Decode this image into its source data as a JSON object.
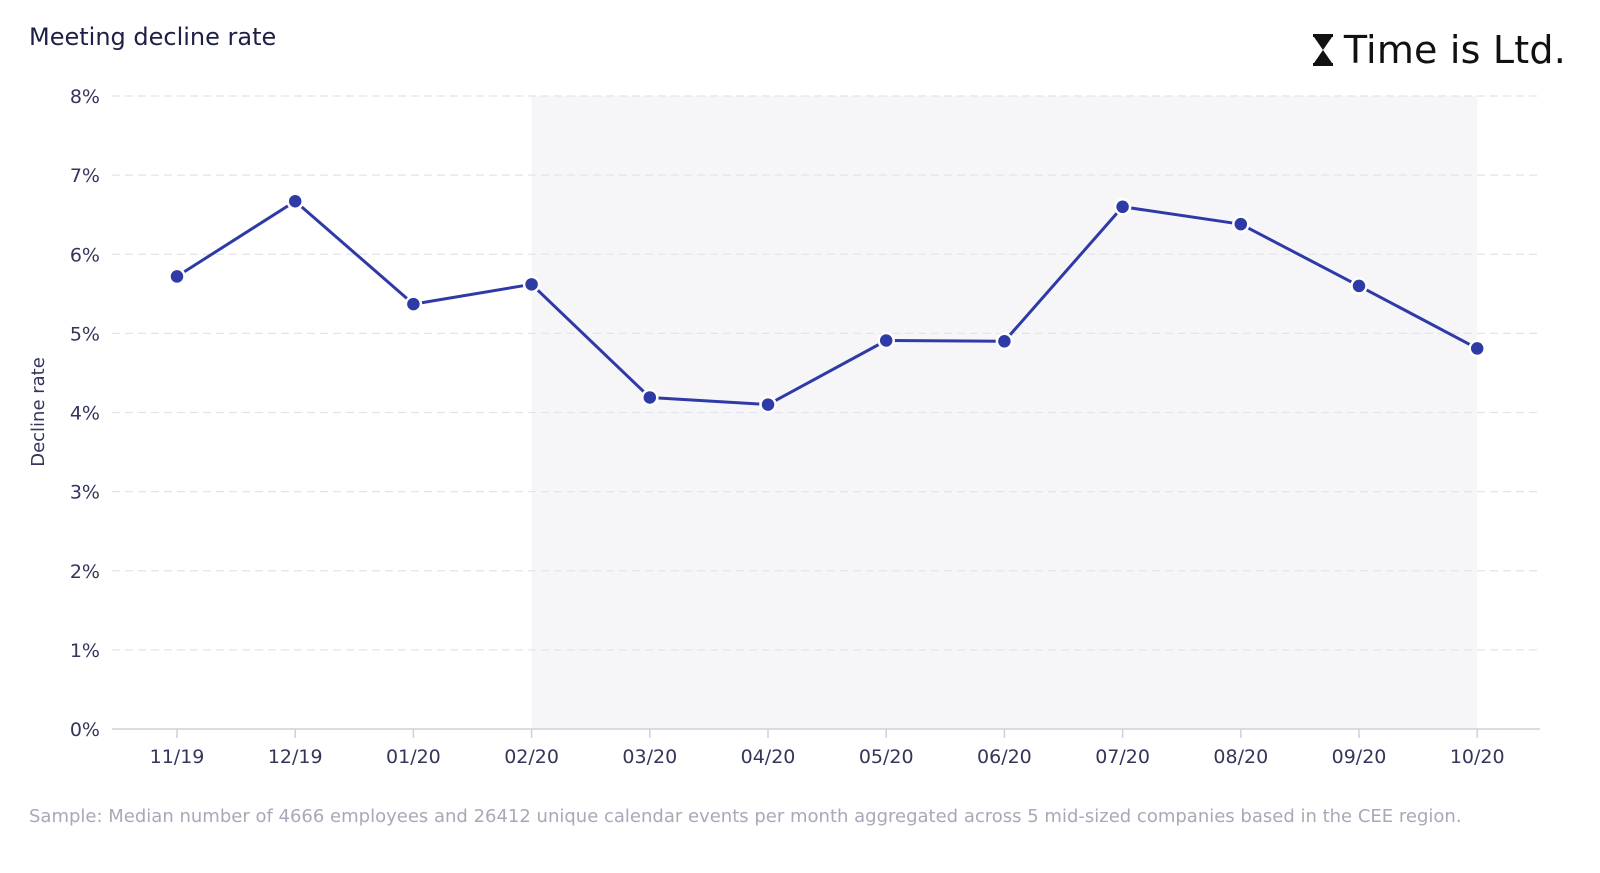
{
  "header": {
    "title": "Meeting decline rate",
    "brand": "Time is Ltd.",
    "brand_icon": "hourglass-icon"
  },
  "footnote": "Sample: Median number of 4666 employees and 26412 unique calendar events per month aggregated across 5 mid-sized companies based in the CEE region.",
  "colors": {
    "line": "#2e3aa6",
    "highlight_band": "#f6f6f9",
    "grid": "#e3e4ea",
    "axis": "#cfd0d8",
    "text": "#33365a",
    "footnote": "#a7a9b7"
  },
  "chart_data": {
    "type": "line",
    "title": "Meeting decline rate",
    "xlabel": "",
    "ylabel": "Decline rate",
    "categories": [
      "11/19",
      "12/19",
      "01/20",
      "02/20",
      "03/20",
      "04/20",
      "05/20",
      "06/20",
      "07/20",
      "08/20",
      "09/20",
      "10/20"
    ],
    "series": [
      {
        "values": [
          5.72,
          6.67,
          5.37,
          5.62,
          4.19,
          4.1,
          4.91,
          4.9,
          6.6,
          6.38,
          5.6,
          4.81
        ]
      }
    ],
    "ylim": [
      0,
      8
    ],
    "yticks": [
      0,
      1,
      2,
      3,
      4,
      5,
      6,
      7,
      8
    ],
    "ytick_labels": [
      "0%",
      "1%",
      "2%",
      "3%",
      "4%",
      "5%",
      "6%",
      "7%",
      "8%"
    ],
    "highlight_range": [
      "02/20",
      "10/20"
    ],
    "grid": true,
    "legend": "none"
  }
}
